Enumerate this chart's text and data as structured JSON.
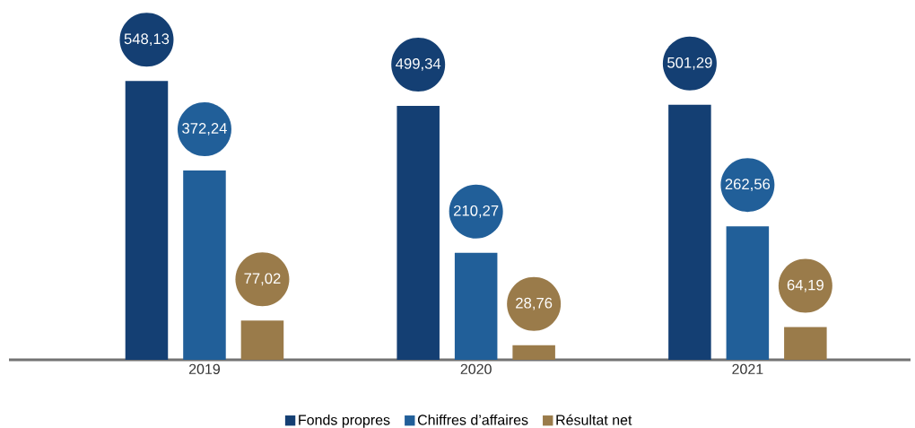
{
  "chart_data": {
    "type": "bar",
    "categories": [
      "2019",
      "2020",
      "2021"
    ],
    "series": [
      {
        "name": "Fonds propres",
        "color": "#143f73",
        "values": [
          548.13,
          499.34,
          501.29
        ],
        "value_labels": [
          "548,13",
          "499,34",
          "501,29"
        ]
      },
      {
        "name": "Chiffres d’affaires",
        "color": "#215f99",
        "values": [
          372.24,
          210.27,
          262.56
        ],
        "value_labels": [
          "372,24",
          "210,27",
          "262,56"
        ]
      },
      {
        "name": "Résultat net",
        "color": "#9a7b4a",
        "values": [
          77.02,
          28.76,
          64.19
        ],
        "value_labels": [
          "77,02",
          "28,76",
          "64,19"
        ]
      }
    ],
    "legend": "bottom"
  }
}
